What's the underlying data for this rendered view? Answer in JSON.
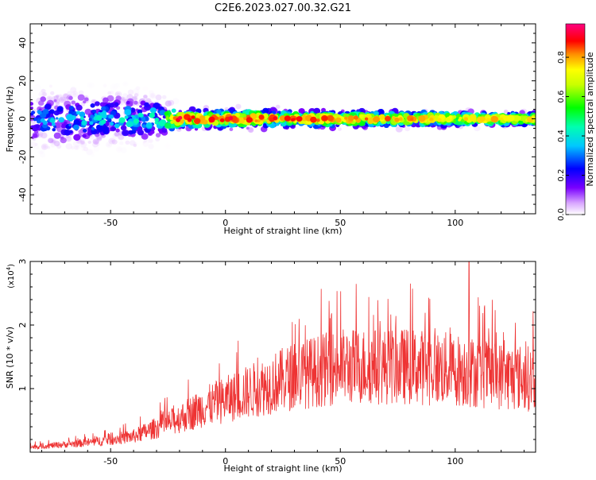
{
  "title": "C2E6.2023.027.00.32.G21",
  "chart_data": [
    {
      "type": "heatmap",
      "xlabel": "Height of straight line (km)",
      "ylabel": "Frequency (Hz)",
      "xlim": [
        -85,
        135
      ],
      "ylim": [
        -50,
        50
      ],
      "xticks": [
        -50,
        0,
        50,
        100
      ],
      "yticks": [
        -40,
        -20,
        0,
        20,
        40
      ],
      "colorbar": {
        "label": "Normalized spectral amplitude",
        "range": [
          0.0,
          0.97
        ],
        "ticks": [
          0.0,
          0.2,
          0.4,
          0.6,
          0.8
        ],
        "tick_labels": [
          "0.0",
          "0.2",
          "0.4",
          "0.6",
          "0.8"
        ],
        "colormap": "rainbow"
      },
      "band_profile": {
        "x": [
          -85,
          -30,
          -20,
          130
        ],
        "center_hz": [
          0,
          0,
          0,
          0
        ],
        "halfwidth_hz": [
          12,
          10,
          5,
          3.5
        ],
        "peak_amplitude": [
          0.35,
          0.45,
          0.9,
          0.75
        ]
      }
    },
    {
      "type": "line",
      "xlabel": "Height of straight line (km)",
      "ylabel": "SNR (10 * v/v)",
      "ylabel_multiplier": "(x10",
      "ylabel_multiplier_exp": "4",
      "ylabel_multiplier_close": ")",
      "xlim": [
        -85,
        135
      ],
      "ylim": [
        0,
        3
      ],
      "xticks": [
        -50,
        0,
        50,
        100
      ],
      "yticks": [
        1,
        2,
        3
      ],
      "y_unit_scale": 10000,
      "color": "#ee3333",
      "trend": {
        "x": [
          -85,
          -60,
          -40,
          -25,
          -10,
          10,
          30,
          50,
          80,
          100,
          120,
          135
        ],
        "y": [
          0.08,
          0.15,
          0.25,
          0.45,
          0.7,
          0.95,
          1.2,
          1.35,
          1.35,
          1.3,
          1.2,
          1.15
        ]
      },
      "max_value": 3.0,
      "max_at_x": 106
    }
  ]
}
